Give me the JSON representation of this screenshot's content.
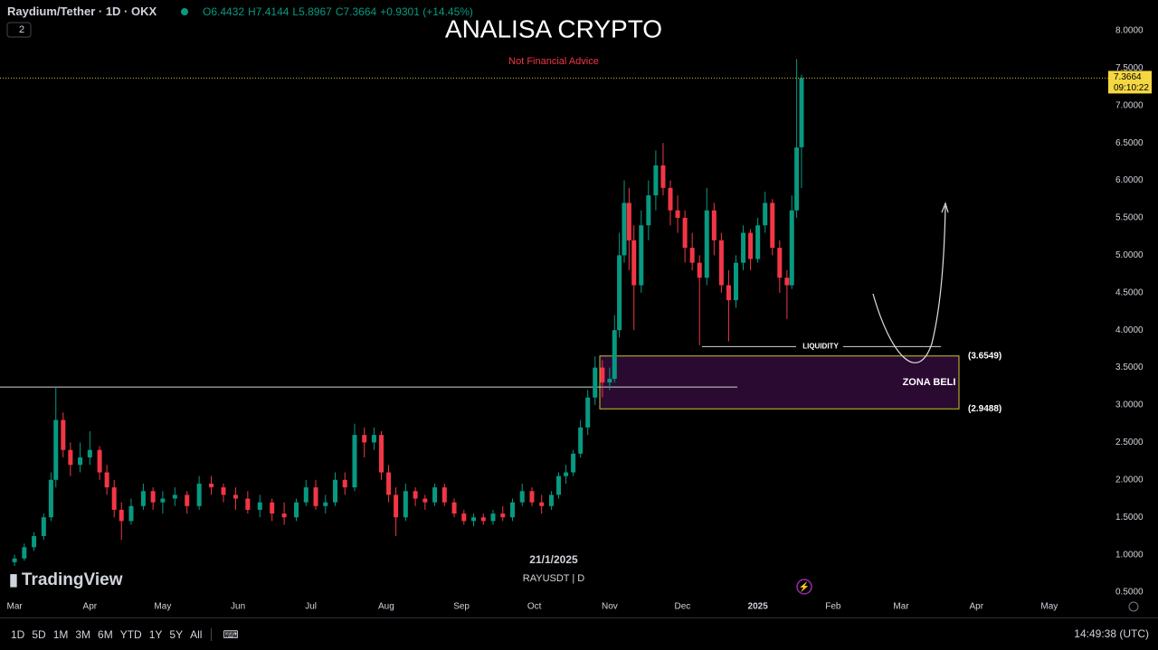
{
  "header": {
    "symbol": "Raydium/Tether · 1D · OKX",
    "ohlc": [
      "O6.4432",
      "H7.4144",
      "L5.8967",
      "C7.3664",
      "+0.9301 (+14.45%)"
    ],
    "indicator_count": "2"
  },
  "chart_data": {
    "type": "candlestick",
    "title": "ANALISA CRYPTO",
    "subtitle": "Not Financial Advice",
    "up_color": "#089981",
    "down_color": "#f23645",
    "x": [
      0,
      4,
      8,
      12,
      15,
      17,
      20,
      23,
      27,
      31,
      35,
      38,
      41,
      44,
      48,
      53,
      57,
      61,
      66,
      71,
      76,
      81,
      86,
      91,
      96,
      101,
      106,
      111,
      116,
      120,
      124,
      128,
      132,
      136,
      140,
      144,
      148,
      151,
      154,
      157,
      161,
      165,
      169,
      173,
      177,
      181,
      185,
      189,
      193,
      197,
      201,
      205,
      209,
      213,
      217,
      221,
      224,
      227,
      230,
      233,
      236,
      239,
      242,
      245,
      247,
      249,
      251,
      253,
      255,
      258,
      261,
      264,
      267,
      270,
      273,
      276,
      279,
      282,
      285,
      288,
      291,
      294,
      297,
      300,
      303,
      306,
      309,
      312,
      315,
      318,
      320,
      322,
      324
    ],
    "open": [
      0.9,
      0.95,
      1.1,
      1.25,
      1.5,
      2.0,
      2.8,
      2.4,
      2.2,
      2.3,
      2.4,
      2.1,
      1.9,
      1.6,
      1.45,
      1.65,
      1.85,
      1.7,
      1.75,
      1.8,
      1.65,
      1.95,
      1.9,
      1.8,
      1.75,
      1.6,
      1.7,
      1.55,
      1.5,
      1.7,
      1.9,
      1.65,
      1.7,
      2.0,
      1.9,
      2.6,
      2.5,
      2.6,
      2.1,
      1.8,
      1.5,
      1.85,
      1.75,
      1.7,
      1.9,
      1.7,
      1.55,
      1.45,
      1.5,
      1.45,
      1.55,
      1.5,
      1.7,
      1.85,
      1.7,
      1.65,
      1.8,
      2.05,
      2.1,
      2.35,
      2.7,
      3.1,
      3.5,
      3.3,
      3.35,
      4.0,
      5.0,
      5.7,
      5.2,
      4.6,
      5.4,
      5.8,
      6.2,
      5.9,
      5.6,
      5.5,
      5.1,
      4.9,
      4.7,
      5.6,
      5.2,
      4.6,
      4.4,
      4.9,
      5.3,
      4.95,
      5.4,
      5.7,
      5.1,
      4.7,
      4.6,
      5.6,
      6.4432
    ],
    "high": [
      1.0,
      1.15,
      1.3,
      1.55,
      2.1,
      3.24,
      2.9,
      2.5,
      2.5,
      2.65,
      2.45,
      2.2,
      2.0,
      1.7,
      1.75,
      1.95,
      1.9,
      1.85,
      1.9,
      1.85,
      2.05,
      2.05,
      1.95,
      1.9,
      1.85,
      1.8,
      1.75,
      1.7,
      1.75,
      2.0,
      2.0,
      1.8,
      2.1,
      2.1,
      2.75,
      2.7,
      2.7,
      2.65,
      2.2,
      1.9,
      1.95,
      1.9,
      1.8,
      1.95,
      1.95,
      1.75,
      1.6,
      1.55,
      1.55,
      1.6,
      1.65,
      1.75,
      1.95,
      1.9,
      1.8,
      1.85,
      2.1,
      2.2,
      2.4,
      2.8,
      3.2,
      3.65,
      3.6,
      3.5,
      4.2,
      5.3,
      6.0,
      5.9,
      5.4,
      5.6,
      6.0,
      6.4,
      6.5,
      6.0,
      5.8,
      5.6,
      5.3,
      5.0,
      5.9,
      5.7,
      5.3,
      4.8,
      5.0,
      5.4,
      5.35,
      5.5,
      5.85,
      5.75,
      5.2,
      4.8,
      5.8,
      7.62,
      7.4144
    ],
    "low": [
      0.85,
      0.92,
      1.05,
      1.2,
      1.45,
      1.9,
      2.3,
      2.05,
      2.1,
      2.2,
      2.0,
      1.8,
      1.5,
      1.2,
      1.4,
      1.6,
      1.6,
      1.55,
      1.65,
      1.55,
      1.6,
      1.8,
      1.7,
      1.6,
      1.55,
      1.5,
      1.45,
      1.4,
      1.45,
      1.65,
      1.6,
      1.55,
      1.65,
      1.8,
      1.85,
      2.3,
      2.4,
      2.0,
      1.7,
      1.25,
      1.45,
      1.65,
      1.6,
      1.65,
      1.65,
      1.5,
      1.4,
      1.38,
      1.4,
      1.4,
      1.45,
      1.45,
      1.65,
      1.65,
      1.55,
      1.6,
      1.75,
      1.95,
      2.05,
      2.3,
      2.6,
      3.0,
      3.1,
      3.2,
      3.3,
      3.9,
      4.9,
      4.8,
      4.0,
      4.5,
      5.2,
      5.6,
      5.8,
      5.4,
      5.3,
      4.9,
      4.8,
      3.8,
      4.6,
      5.0,
      4.5,
      3.85,
      4.3,
      4.8,
      4.8,
      4.9,
      5.3,
      5.0,
      4.5,
      4.15,
      4.55,
      5.5,
      5.8967
    ],
    "close": [
      0.95,
      1.1,
      1.25,
      1.5,
      2.0,
      2.8,
      2.4,
      2.2,
      2.3,
      2.4,
      2.1,
      1.9,
      1.6,
      1.45,
      1.65,
      1.85,
      1.7,
      1.75,
      1.8,
      1.65,
      1.95,
      1.9,
      1.8,
      1.75,
      1.6,
      1.7,
      1.55,
      1.5,
      1.7,
      1.9,
      1.65,
      1.7,
      2.0,
      1.9,
      2.6,
      2.5,
      2.6,
      2.1,
      1.8,
      1.5,
      1.85,
      1.75,
      1.7,
      1.9,
      1.7,
      1.55,
      1.45,
      1.5,
      1.45,
      1.55,
      1.5,
      1.7,
      1.85,
      1.7,
      1.65,
      1.8,
      2.05,
      2.1,
      2.35,
      2.7,
      3.1,
      3.5,
      3.3,
      3.35,
      4.0,
      5.0,
      5.7,
      5.2,
      4.6,
      5.4,
      5.8,
      6.2,
      5.9,
      5.6,
      5.5,
      5.1,
      4.9,
      4.7,
      5.6,
      5.2,
      4.6,
      4.4,
      4.9,
      5.3,
      4.95,
      5.4,
      5.7,
      5.1,
      4.7,
      4.6,
      5.6,
      6.44,
      7.3664
    ],
    "xlim": [
      -6,
      454
    ],
    "xticks": [
      {
        "value": 0,
        "label": "Mar"
      },
      {
        "value": 31,
        "label": "Apr"
      },
      {
        "value": 61,
        "label": "May"
      },
      {
        "value": 92,
        "label": "Jun"
      },
      {
        "value": 122,
        "label": "Jul"
      },
      {
        "value": 153,
        "label": "Aug"
      },
      {
        "value": 184,
        "label": "Sep"
      },
      {
        "value": 214,
        "label": "Oct"
      },
      {
        "value": 245,
        "label": "Nov"
      },
      {
        "value": 275,
        "label": "Dec"
      },
      {
        "value": 306,
        "label": "2025"
      },
      {
        "value": 337,
        "label": "Feb"
      },
      {
        "value": 365,
        "label": "Mar"
      },
      {
        "value": 396,
        "label": "Apr"
      },
      {
        "value": 426,
        "label": "May"
      }
    ],
    "ylim": [
      0.44,
      8.41
    ],
    "yticks": [
      {
        "value": 0.5,
        "label": "0.5000"
      },
      {
        "value": 1,
        "label": "1.0000"
      },
      {
        "value": 1.5,
        "label": "1.5000"
      },
      {
        "value": 2,
        "label": "2.0000"
      },
      {
        "value": 2.5,
        "label": "2.5000"
      },
      {
        "value": 3,
        "label": "3.0000"
      },
      {
        "value": 3.5,
        "label": "3.5000"
      },
      {
        "value": 4,
        "label": "4.0000"
      },
      {
        "value": 4.5,
        "label": "4.5000"
      },
      {
        "value": 5,
        "label": "5.0000"
      },
      {
        "value": 5.5,
        "label": "5.5000"
      },
      {
        "value": 6,
        "label": "6.0000"
      },
      {
        "value": 6.5,
        "label": "6.5000"
      },
      {
        "value": 7,
        "label": "7.0000"
      },
      {
        "value": 7.5,
        "label": "7.5000"
      },
      {
        "value": 8,
        "label": "8.0000"
      }
    ],
    "last_price": 7.3664,
    "last_price_time": "09:10:22",
    "resistance": 3.24,
    "liquidity": {
      "label": "LIQUIDITY",
      "value": 3.78
    },
    "zone": {
      "label": "ZONA BELI",
      "high": 3.6549,
      "low": 2.9488,
      "high_label": "(3.6549)",
      "low_label": "(2.9488)"
    },
    "cursor_date": "21/1/2025",
    "symbol_label": "RAYUSDT | D",
    "watermark": "TradingView"
  },
  "toolbar": {
    "timeframes": [
      "1D",
      "5D",
      "1M",
      "3M",
      "6M",
      "YTD",
      "1Y",
      "5Y",
      "All"
    ],
    "clock": "14:49:38 (UTC)"
  }
}
